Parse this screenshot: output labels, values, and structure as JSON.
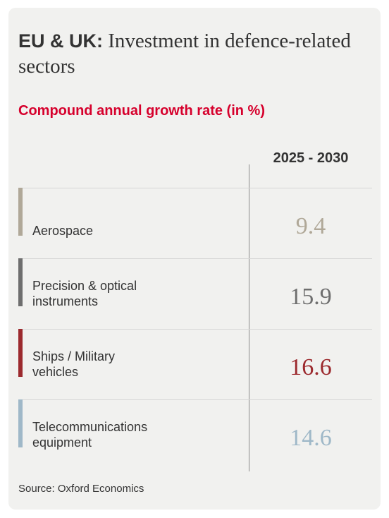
{
  "title_bold": "EU & UK:",
  "title_rest": " Investment in defence-related sectors",
  "subtitle": "Compound annual growth rate (in %)",
  "source": "Source: Oxford Economics",
  "chart_data": {
    "type": "table",
    "title": "EU & UK: Investment in defence-related sectors",
    "subtitle": "Compound annual growth rate (in %)",
    "column_header": "2025 - 2030",
    "rows": [
      {
        "label": "Aerospace",
        "value": "9.4",
        "color": "#b0a898"
      },
      {
        "label": "Precision & optical instruments",
        "value": "15.9",
        "color": "#6e6e6e"
      },
      {
        "label": "Ships / Military vehicles",
        "value": "16.6",
        "color": "#9c2a2e"
      },
      {
        "label": "Telecommunications equipment",
        "value": "14.6",
        "color": "#9fb8c8"
      }
    ]
  }
}
